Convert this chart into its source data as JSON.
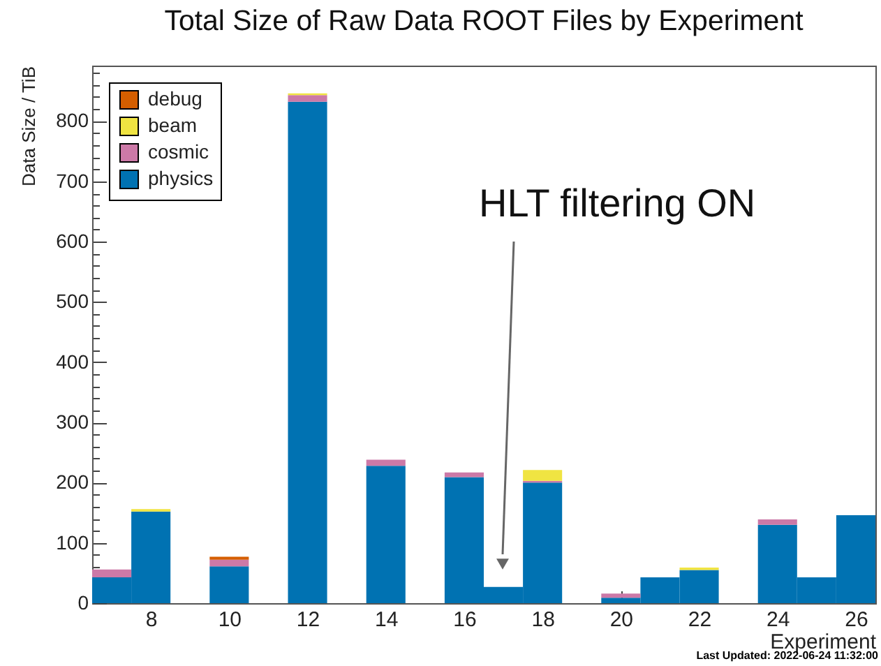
{
  "chart_data": {
    "type": "bar",
    "title": "Total Size of Raw Data ROOT Files by Experiment",
    "xlabel": "Experiment",
    "ylabel": "Data Size / TiB",
    "x": [
      7,
      8,
      9,
      10,
      11,
      12,
      13,
      14,
      15,
      16,
      17,
      18,
      19,
      20,
      21,
      22,
      23,
      24,
      25,
      26
    ],
    "series": [
      {
        "name": "physics",
        "color": "#0072b2",
        "values": [
          43,
          152,
          null,
          61,
          null,
          832,
          null,
          228,
          null,
          209,
          27,
          200,
          null,
          9,
          43,
          55,
          null,
          130,
          43,
          146
        ]
      },
      {
        "name": "cosmic",
        "color": "#cc79a7",
        "values": [
          13,
          null,
          null,
          11,
          null,
          11,
          null,
          10,
          null,
          8,
          null,
          3,
          null,
          7,
          null,
          null,
          null,
          9,
          null,
          null
        ]
      },
      {
        "name": "beam",
        "color": "#f0e442",
        "values": [
          null,
          4,
          null,
          null,
          null,
          3,
          null,
          null,
          null,
          null,
          null,
          18,
          null,
          null,
          null,
          4,
          null,
          null,
          null,
          null
        ]
      },
      {
        "name": "debug",
        "color": "#d55e00",
        "values": [
          null,
          null,
          null,
          5,
          null,
          null,
          null,
          null,
          null,
          null,
          null,
          null,
          null,
          null,
          null,
          null,
          null,
          null,
          null,
          null
        ]
      }
    ],
    "stacked": true,
    "xlim": [
      6.5,
      26.5
    ],
    "xticks": [
      8,
      10,
      12,
      14,
      16,
      18,
      20,
      22,
      24,
      26
    ],
    "ylim": [
      0,
      892
    ],
    "yticks": [
      0,
      {
        "value": 20,
        "label": null
      },
      {
        "value": 40,
        "label": null
      },
      {
        "value": 60,
        "label": null
      },
      {
        "value": 80,
        "label": null
      },
      100,
      {
        "value": 120,
        "label": null
      },
      {
        "value": 140,
        "label": null
      },
      {
        "value": 160,
        "label": null
      },
      {
        "value": 180,
        "label": null
      },
      200,
      {
        "value": 220,
        "label": null
      },
      {
        "value": 240,
        "label": null
      },
      {
        "value": 260,
        "label": null
      },
      {
        "value": 280,
        "label": null
      },
      300,
      {
        "value": 320,
        "label": null
      },
      {
        "value": 340,
        "label": null
      },
      {
        "value": 360,
        "label": null
      },
      {
        "value": 380,
        "label": null
      },
      400,
      {
        "value": 420,
        "label": null
      },
      {
        "value": 440,
        "label": null
      },
      {
        "value": 460,
        "label": null
      },
      {
        "value": 480,
        "label": null
      },
      500,
      {
        "value": 520,
        "label": null
      },
      {
        "value": 540,
        "label": null
      },
      {
        "value": 560,
        "label": null
      },
      {
        "value": 580,
        "label": null
      },
      600,
      {
        "value": 620,
        "label": null
      },
      {
        "value": 640,
        "label": null
      },
      {
        "value": 660,
        "label": null
      },
      {
        "value": 680,
        "label": null
      },
      700,
      {
        "value": 720,
        "label": null
      },
      {
        "value": 740,
        "label": null
      },
      {
        "value": 760,
        "label": null
      },
      {
        "value": 780,
        "label": null
      },
      800,
      {
        "value": 820,
        "label": null
      },
      {
        "value": 840,
        "label": null
      },
      {
        "value": 860,
        "label": null
      },
      {
        "value": 880,
        "label": null
      }
    ],
    "legend": "top left",
    "annotations": [
      "HLT filtering ON",
      "Last Updated: 2022-06-24 11:32:00"
    ]
  }
}
